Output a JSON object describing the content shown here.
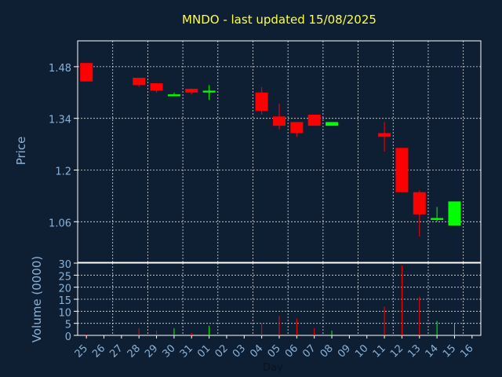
{
  "chart_data": [
    {
      "type": "candlestick",
      "title": "MNDO - last updated 15/08/2025",
      "ylabel": "Price",
      "ylim": [
        0.95,
        1.55
      ],
      "yticks": [
        "1.06",
        "1.2",
        "1.34",
        "1.48"
      ],
      "up_color": "#00ff00",
      "down_color": "#ff0000",
      "grid": true,
      "candles": [
        {
          "day": "25",
          "open": 1.49,
          "high": 1.49,
          "low": 1.44,
          "close": 1.44
        },
        {
          "day": "28",
          "open": 1.45,
          "high": 1.45,
          "low": 1.425,
          "close": 1.43
        },
        {
          "day": "29",
          "open": 1.435,
          "high": 1.435,
          "low": 1.41,
          "close": 1.415
        },
        {
          "day": "30",
          "open": 1.4,
          "high": 1.41,
          "low": 1.4,
          "close": 1.405
        },
        {
          "day": "31",
          "open": 1.42,
          "high": 1.42,
          "low": 1.405,
          "close": 1.41
        },
        {
          "day": "01",
          "open": 1.41,
          "high": 1.43,
          "low": 1.39,
          "close": 1.415
        },
        {
          "day": "04",
          "open": 1.41,
          "high": 1.425,
          "low": 1.35,
          "close": 1.36
        },
        {
          "day": "05",
          "open": 1.345,
          "high": 1.38,
          "low": 1.31,
          "close": 1.32
        },
        {
          "day": "06",
          "open": 1.33,
          "high": 1.33,
          "low": 1.29,
          "close": 1.3
        },
        {
          "day": "07",
          "open": 1.35,
          "high": 1.35,
          "low": 1.32,
          "close": 1.32
        },
        {
          "day": "08",
          "open": 1.32,
          "high": 1.33,
          "low": 1.32,
          "close": 1.33
        },
        {
          "day": "11",
          "open": 1.3,
          "high": 1.33,
          "low": 1.25,
          "close": 1.29
        },
        {
          "day": "12",
          "open": 1.26,
          "high": 1.26,
          "low": 1.14,
          "close": 1.14
        },
        {
          "day": "13",
          "open": 1.14,
          "high": 1.145,
          "low": 1.02,
          "close": 1.08
        },
        {
          "day": "14",
          "open": 1.065,
          "high": 1.1,
          "low": 1.06,
          "close": 1.07
        },
        {
          "day": "15",
          "open": 1.05,
          "high": 1.115,
          "low": 1.05,
          "close": 1.115
        }
      ]
    },
    {
      "type": "bar",
      "ylabel": "Volume (0000)",
      "ylim": [
        0,
        30
      ],
      "yticks": [
        "0",
        "5",
        "10",
        "15",
        "20",
        "25",
        "30"
      ],
      "xlabel": "Day",
      "categories": [
        "25",
        "26",
        "27",
        "28",
        "29",
        "30",
        "31",
        "01",
        "02",
        "03",
        "04",
        "05",
        "06",
        "07",
        "08",
        "09",
        "10",
        "11",
        "12",
        "13",
        "14",
        "15",
        "16"
      ],
      "values": [
        0.3,
        0,
        0,
        3,
        2,
        3,
        1,
        4,
        0,
        0,
        5,
        8,
        7,
        3,
        2,
        0,
        0,
        12,
        29,
        16,
        6,
        5,
        0
      ],
      "colors": [
        "down",
        "none",
        "none",
        "down",
        "down",
        "up",
        "down",
        "up",
        "none",
        "none",
        "down",
        "down",
        "down",
        "down",
        "up",
        "none",
        "none",
        "down",
        "down",
        "down",
        "up",
        "up",
        "none"
      ]
    }
  ],
  "colors": {
    "background": "#0f1f33",
    "plot_border": "#ffffff",
    "grid": "#ffffff",
    "text": "#8ab2d8",
    "title": "#ffff3c"
  }
}
